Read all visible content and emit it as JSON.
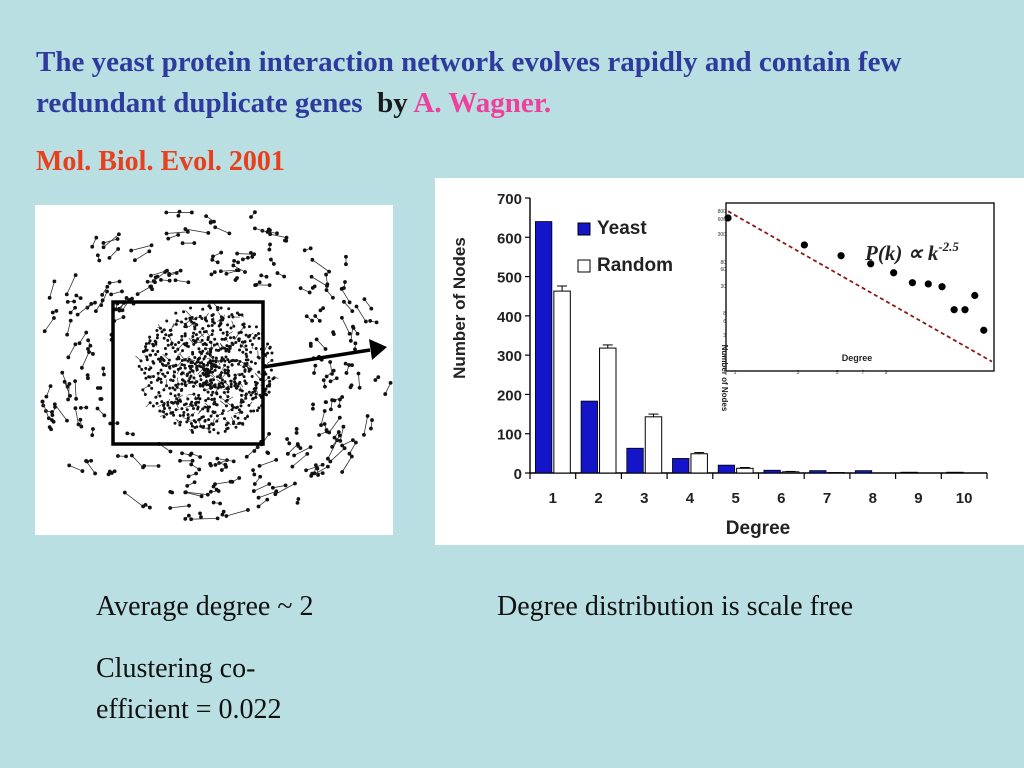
{
  "slide": {
    "title_main": "The yeast protein interaction network evolves rapidly and contain few redundant duplicate genes",
    "title_by": "by",
    "title_author": "A. Wagner.",
    "citation": "Mol. Biol. Evol. 2001",
    "caption_degree": "Average degree  ~ 2",
    "caption_cluster_line1": "Clustering co-",
    "caption_cluster_line2": "efficient  = 0.022",
    "caption_scalefree": "Degree distribution is scale free"
  },
  "colors": {
    "background": "#b9dfe3",
    "title": "#2e3b9c",
    "author": "#ee3f9a",
    "citation": "#e8401c",
    "yeast_bar": "#1414c8",
    "random_bar": "#ffffff"
  },
  "chart_data": [
    {
      "type": "bar",
      "categories": [
        "1",
        "2",
        "3",
        "4",
        "5",
        "6",
        "7",
        "8",
        "9",
        "10"
      ],
      "series": [
        {
          "name": "Yeast",
          "values": [
            640,
            183,
            63,
            37,
            20,
            7,
            6,
            6,
            2,
            2
          ]
        },
        {
          "name": "Random",
          "values": [
            463,
            318,
            143,
            49,
            12,
            3,
            1,
            0,
            0,
            0
          ],
          "error": [
            13,
            8,
            7,
            3,
            2,
            1,
            0,
            0,
            0,
            0
          ]
        }
      ],
      "xlabel": "Degree",
      "ylabel": "Number of Nodes",
      "ylim": [
        0,
        700
      ],
      "yticks": [
        "0",
        "100",
        "200",
        "300",
        "400",
        "500",
        "600",
        "700"
      ],
      "legend": "top-right"
    },
    {
      "type": "scatter",
      "scale": "log-log",
      "annotation": "P(k) ∝ k",
      "annotation_exponent": "-2.5",
      "xlabel": "Degree",
      "ylabel": "Number of Nodes",
      "xticks": [
        "1",
        "3",
        "5",
        "7",
        "9"
      ],
      "yticks": [
        "800",
        "600",
        "300",
        "80",
        "60",
        "30",
        "8",
        "6",
        "3",
        "1"
      ],
      "points": [
        [
          1,
          600
        ],
        [
          2.1,
          190
        ],
        [
          3,
          120
        ],
        [
          4,
          85
        ],
        [
          5,
          58
        ],
        [
          6,
          38
        ],
        [
          7,
          36
        ],
        [
          8,
          32
        ],
        [
          9,
          12
        ],
        [
          10,
          12
        ],
        [
          11,
          22
        ],
        [
          12,
          5
        ]
      ],
      "fit": {
        "slope": -2.5,
        "style": "dashed",
        "color": "#8b1a1a"
      }
    }
  ],
  "network": {
    "style": "nodes-and-edges",
    "highlight_box": true,
    "arrow": true
  }
}
